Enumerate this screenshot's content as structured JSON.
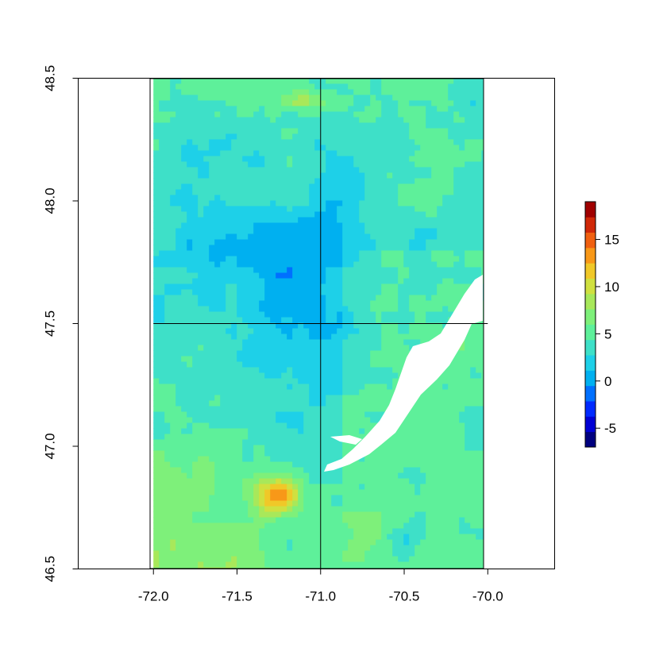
{
  "chart_data": {
    "type": "heatmap",
    "title": "",
    "xlabel": "",
    "ylabel": "",
    "xlim": [
      -72.45,
      -69.6
    ],
    "ylim": [
      46.5,
      48.5
    ],
    "raster_extent": {
      "x": [
        -72.0,
        -70.0
      ],
      "y": [
        46.5,
        48.5
      ]
    },
    "x_ticks": [
      {
        "value": -72.0,
        "label": "-72.0"
      },
      {
        "value": -71.5,
        "label": "-71.5"
      },
      {
        "value": -71.0,
        "label": "-71.0"
      },
      {
        "value": -70.5,
        "label": "-70.5"
      },
      {
        "value": -70.0,
        "label": "-70.0"
      }
    ],
    "y_ticks": [
      {
        "value": 46.5,
        "label": "46.5"
      },
      {
        "value": 47.0,
        "label": "47.0"
      },
      {
        "value": 47.5,
        "label": "47.5"
      },
      {
        "value": 48.0,
        "label": "48.0"
      },
      {
        "value": 48.5,
        "label": "48.5"
      }
    ],
    "tile_boundaries": {
      "x": [
        -71.0
      ],
      "y": [
        47.5
      ]
    },
    "colorbar": {
      "range": [
        -7,
        19
      ],
      "ticks": [
        {
          "value": 15,
          "label": "15"
        },
        {
          "value": 10,
          "label": "10"
        },
        {
          "value": 5,
          "label": "5"
        },
        {
          "value": 0,
          "label": "0"
        },
        {
          "value": -5,
          "label": "-5"
        }
      ],
      "palette": [
        "#00007f",
        "#0000d4",
        "#002aff",
        "#0070ff",
        "#00b0f0",
        "#1ed0e8",
        "#3ee0c8",
        "#5ef09a",
        "#7ef07a",
        "#a8e85a",
        "#d0e040",
        "#f0c828",
        "#f89818",
        "#f06010",
        "#d02808",
        "#a00000"
      ]
    },
    "background": {
      "base_value": 4.2,
      "cool_value": 1.5,
      "hot_value": 16,
      "palette_note": "jet"
    },
    "missing_color": "#ffffff"
  }
}
